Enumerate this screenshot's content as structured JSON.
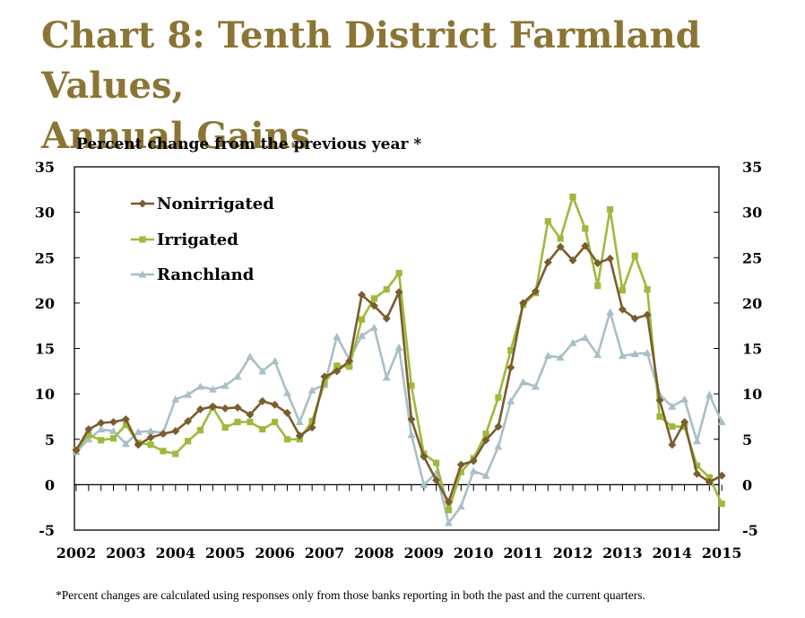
{
  "title": {
    "line1": "Chart 8: Tenth District Farmland Values,",
    "line2": "Annual Gains"
  },
  "footnote": "*Percent changes are calculated using responses only from those banks reporting in both the past and the current quarters.",
  "colors": {
    "Nonirrigated": "#7a5c2e",
    "Irrigated": "#9fb93c",
    "Ranchland": "#a9bfc6"
  },
  "chart_data": {
    "type": "line",
    "title": "Chart 8: Tenth District Farmland Values, Annual Gains",
    "ylabel": "Percent change from the previous year *",
    "xlabel": "",
    "ylim": [
      -5,
      35
    ],
    "yticks": [
      -5,
      0,
      5,
      10,
      15,
      20,
      25,
      30,
      35
    ],
    "xticks": [
      "2002",
      "2003",
      "2004",
      "2005",
      "2006",
      "2007",
      "2008",
      "2009",
      "2010",
      "2011",
      "2012",
      "2013",
      "2014",
      "2015"
    ],
    "x_unit": "quarter",
    "x_start": "2002 Q1",
    "legend_position": "top-left",
    "grid": false,
    "series": [
      {
        "name": "Nonirrigated",
        "marker": "diamond",
        "values": [
          3.8,
          6.1,
          6.8,
          6.9,
          7.2,
          4.4,
          5.2,
          5.6,
          5.9,
          7.0,
          8.3,
          8.6,
          8.4,
          8.5,
          7.7,
          9.2,
          8.8,
          7.9,
          5.4,
          6.3,
          11.9,
          12.5,
          13.6,
          20.9,
          19.7,
          18.3,
          21.2,
          7.2,
          3.1,
          0.5,
          -1.9,
          2.2,
          2.6,
          4.9,
          6.4,
          12.9,
          20.0,
          21.3,
          24.5,
          26.2,
          24.7,
          26.3,
          24.4,
          24.9,
          19.3,
          18.3,
          18.7,
          9.3,
          4.4,
          6.9,
          1.2,
          0.3,
          1.0
        ]
      },
      {
        "name": "Irrigated",
        "marker": "square",
        "values": [
          3.8,
          5.5,
          4.9,
          5.1,
          6.6,
          4.6,
          4.4,
          3.7,
          3.4,
          4.8,
          6.0,
          8.5,
          6.3,
          6.9,
          6.9,
          6.1,
          6.9,
          5.0,
          5.0,
          7.0,
          11.2,
          13.1,
          13.0,
          18.2,
          20.5,
          21.5,
          23.3,
          10.9,
          3.4,
          2.4,
          -2.8,
          1.4,
          2.9,
          5.6,
          9.6,
          14.8,
          19.8,
          21.1,
          29.0,
          27.1,
          31.7,
          28.2,
          21.9,
          30.3,
          21.4,
          25.2,
          21.5,
          7.5,
          6.4,
          6.4,
          2.1,
          0.8,
          -2.1
        ]
      },
      {
        "name": "Ranchland",
        "marker": "triangle",
        "values": [
          3.6,
          5.0,
          6.1,
          5.9,
          4.5,
          5.8,
          5.9,
          5.7,
          9.4,
          9.9,
          10.8,
          10.5,
          10.9,
          11.9,
          14.1,
          12.5,
          13.6,
          10.1,
          6.9,
          10.4,
          11.0,
          16.3,
          13.8,
          16.4,
          17.3,
          11.8,
          15.1,
          5.5,
          0.0,
          1.3,
          -4.2,
          -2.4,
          1.5,
          1.0,
          4.2,
          9.2,
          11.3,
          10.8,
          14.2,
          14.0,
          15.6,
          16.2,
          14.3,
          19.0,
          14.2,
          14.4,
          14.5,
          9.9,
          8.6,
          9.4,
          4.8,
          9.9,
          6.9
        ]
      }
    ]
  }
}
